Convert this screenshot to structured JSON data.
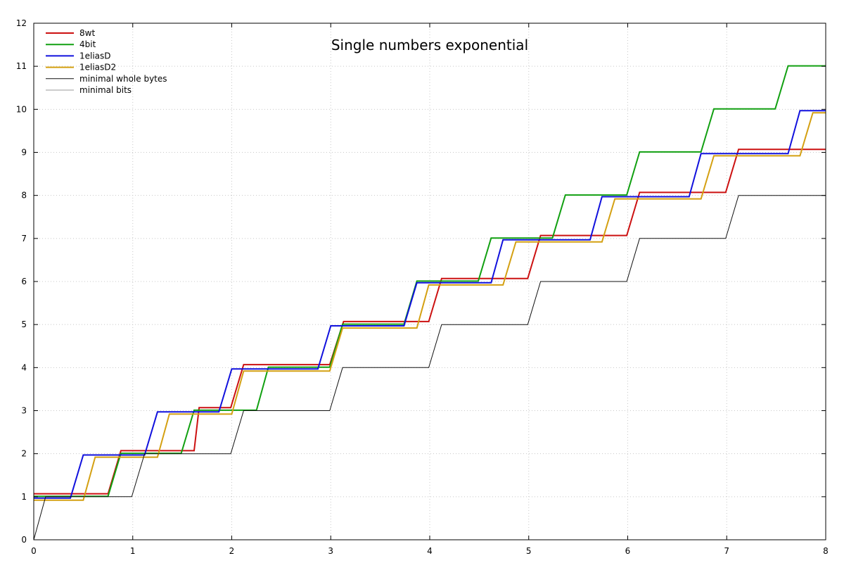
{
  "chart_data": {
    "type": "line",
    "title": "Single numbers exponential",
    "xlabel": "",
    "ylabel": "",
    "xlim": [
      0,
      8
    ],
    "ylim": [
      0,
      12
    ],
    "x_ticks": [
      0,
      1,
      2,
      3,
      4,
      5,
      6,
      7,
      8
    ],
    "y_ticks": [
      0,
      1,
      2,
      3,
      4,
      5,
      6,
      7,
      8,
      9,
      10,
      11,
      12
    ],
    "grid": true,
    "legend_position": "top-left",
    "series": [
      {
        "name": "8wt",
        "color": "#cc1111",
        "width": 2,
        "points": [
          [
            0,
            1.07
          ],
          [
            0.75,
            1.07
          ],
          [
            0.88,
            2.07
          ],
          [
            1.62,
            2.07
          ],
          [
            1.67,
            3.07
          ],
          [
            1.99,
            3.07
          ],
          [
            2.12,
            4.07
          ],
          [
            2.99,
            4.07
          ],
          [
            3.13,
            5.07
          ],
          [
            3.99,
            5.07
          ],
          [
            4.12,
            6.07
          ],
          [
            4.99,
            6.07
          ],
          [
            5.12,
            7.07
          ],
          [
            5.99,
            7.07
          ],
          [
            6.12,
            8.07
          ],
          [
            6.99,
            8.07
          ],
          [
            7.12,
            9.07
          ],
          [
            8,
            9.07
          ]
        ]
      },
      {
        "name": "4bit",
        "color": "#11a011",
        "width": 2,
        "points": [
          [
            0,
            1.01
          ],
          [
            0.75,
            1.01
          ],
          [
            0.88,
            2.01
          ],
          [
            1.49,
            2.01
          ],
          [
            1.62,
            3.01
          ],
          [
            2.25,
            3.01
          ],
          [
            2.37,
            4.01
          ],
          [
            2.99,
            4.01
          ],
          [
            3.12,
            5.01
          ],
          [
            3.74,
            5.01
          ],
          [
            3.87,
            6.01
          ],
          [
            4.49,
            6.01
          ],
          [
            4.62,
            7.01
          ],
          [
            5.24,
            7.01
          ],
          [
            5.37,
            8.01
          ],
          [
            5.99,
            8.01
          ],
          [
            6.12,
            9.01
          ],
          [
            6.74,
            9.01
          ],
          [
            6.87,
            10.01
          ],
          [
            7.49,
            10.01
          ],
          [
            7.62,
            11.01
          ],
          [
            8,
            11.01
          ]
        ]
      },
      {
        "name": "1eliasD",
        "color": "#1111dd",
        "width": 2,
        "points": [
          [
            0,
            0.97
          ],
          [
            0.37,
            0.97
          ],
          [
            0.5,
            1.97
          ],
          [
            1.12,
            1.97
          ],
          [
            1.25,
            2.97
          ],
          [
            1.87,
            2.97
          ],
          [
            2,
            3.97
          ],
          [
            2.87,
            3.97
          ],
          [
            3,
            4.97
          ],
          [
            3.74,
            4.97
          ],
          [
            3.87,
            5.97
          ],
          [
            4.62,
            5.97
          ],
          [
            4.74,
            6.97
          ],
          [
            5.62,
            6.97
          ],
          [
            5.74,
            7.97
          ],
          [
            6.62,
            7.97
          ],
          [
            6.74,
            8.97
          ],
          [
            7.62,
            8.97
          ],
          [
            7.74,
            9.97
          ],
          [
            8,
            9.97
          ]
        ]
      },
      {
        "name": "1eliasD2",
        "color": "#d4a012",
        "width": 2,
        "points": [
          [
            0,
            0.92
          ],
          [
            0.5,
            0.92
          ],
          [
            0.62,
            1.92
          ],
          [
            1.25,
            1.92
          ],
          [
            1.37,
            2.92
          ],
          [
            2,
            2.92
          ],
          [
            2.12,
            3.92
          ],
          [
            2.99,
            3.92
          ],
          [
            3.12,
            4.92
          ],
          [
            3.87,
            4.92
          ],
          [
            3.99,
            5.92
          ],
          [
            4.74,
            5.92
          ],
          [
            4.87,
            6.92
          ],
          [
            5.74,
            6.92
          ],
          [
            5.87,
            7.92
          ],
          [
            6.74,
            7.92
          ],
          [
            6.87,
            8.92
          ],
          [
            7.74,
            8.92
          ],
          [
            7.87,
            9.92
          ],
          [
            8,
            9.92
          ]
        ]
      },
      {
        "name": "minimal whole bytes",
        "color": "#111111",
        "width": 1,
        "points": [
          [
            0,
            0
          ],
          [
            0.12,
            1
          ],
          [
            0.99,
            1
          ],
          [
            1.12,
            2
          ],
          [
            1.99,
            2
          ],
          [
            2.12,
            3
          ],
          [
            2.99,
            3
          ],
          [
            3.12,
            4
          ],
          [
            3.99,
            4
          ],
          [
            4.12,
            5
          ],
          [
            4.99,
            5
          ],
          [
            5.12,
            6
          ],
          [
            5.99,
            6
          ],
          [
            6.12,
            7
          ],
          [
            6.99,
            7
          ],
          [
            7.12,
            8
          ],
          [
            8,
            8
          ]
        ]
      },
      {
        "name": "minimal bits",
        "color": "#999999",
        "width": 1,
        "points": []
      }
    ]
  }
}
